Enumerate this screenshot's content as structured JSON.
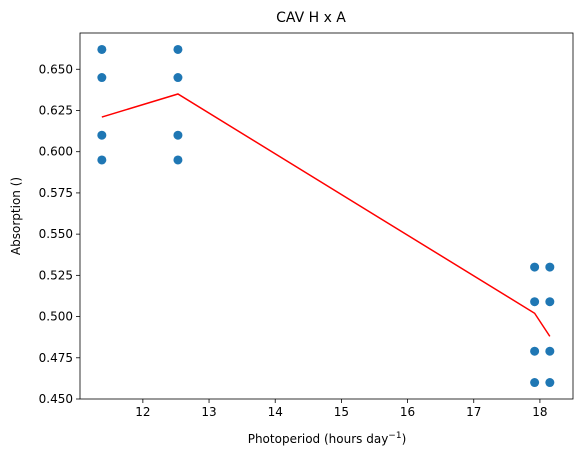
{
  "chart_data": {
    "type": "scatter",
    "title": "CAV H x A",
    "xlabel": "Photoperiod (hours day",
    "xlabel_sup": "−1",
    "xlabel_end": ")",
    "ylabel": "Absorption ()",
    "xlim": [
      11.05,
      18.5
    ],
    "ylim": [
      0.45,
      0.672
    ],
    "x_ticks": [
      12,
      13,
      14,
      15,
      16,
      17,
      18
    ],
    "x_tick_labels": [
      "12",
      "13",
      "14",
      "15",
      "16",
      "17",
      "18"
    ],
    "y_ticks": [
      0.45,
      0.475,
      0.5,
      0.525,
      0.55,
      0.575,
      0.6,
      0.625,
      0.65
    ],
    "y_tick_labels": [
      "0.450",
      "0.475",
      "0.500",
      "0.525",
      "0.550",
      "0.575",
      "0.600",
      "0.625",
      "0.650"
    ],
    "grid": false,
    "series": [
      {
        "type": "scatter",
        "color": "#1f77b4",
        "points": [
          [
            11.38,
            0.662
          ],
          [
            11.38,
            0.645
          ],
          [
            11.38,
            0.61
          ],
          [
            11.38,
            0.595
          ],
          [
            12.53,
            0.662
          ],
          [
            12.53,
            0.645
          ],
          [
            12.53,
            0.61
          ],
          [
            12.53,
            0.595
          ],
          [
            17.92,
            0.53
          ],
          [
            17.92,
            0.509
          ],
          [
            17.92,
            0.479
          ],
          [
            17.92,
            0.46
          ],
          [
            18.15,
            0.53
          ],
          [
            18.15,
            0.509
          ],
          [
            18.15,
            0.479
          ],
          [
            18.15,
            0.46
          ]
        ]
      },
      {
        "type": "line",
        "color": "#ff0000",
        "points": [
          [
            11.38,
            0.621
          ],
          [
            12.53,
            0.635
          ],
          [
            17.92,
            0.502
          ],
          [
            18.15,
            0.488
          ]
        ]
      }
    ]
  }
}
